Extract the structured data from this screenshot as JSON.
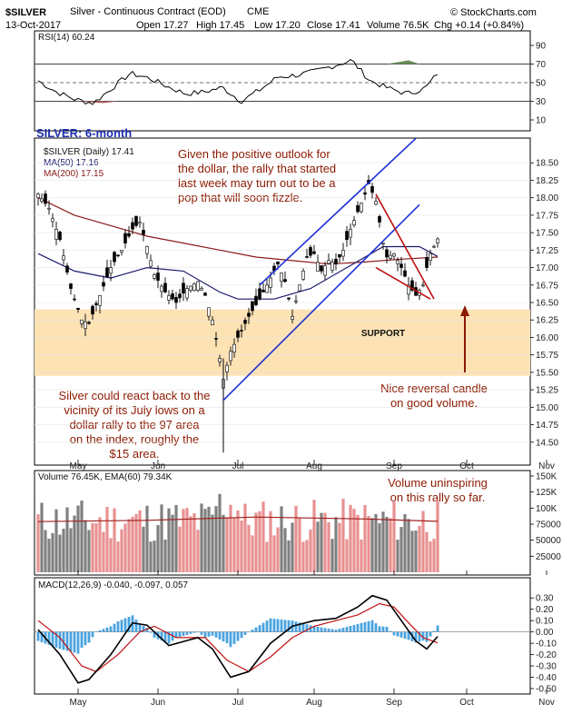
{
  "header": {
    "symbol": "$SILVER",
    "description": "Silver - Continuous Contract (EOD)",
    "exchange": "CME",
    "date": "13-Oct-2017",
    "open": "Open 17.27",
    "high": "High 17.45",
    "low": "Low 17.20",
    "close": "Close 17.41",
    "volume": "Volume 76.5K",
    "change": "Chg +0.14 (+0.84%)",
    "credit": "© StockCharts.com"
  },
  "colors": {
    "up_candle": "#ffffff",
    "down_candle": "#000000",
    "ma50": "#1a1a6e",
    "ma200": "#8b1a1a",
    "support_band": "#fde2b4",
    "channel": "#1c2fd6",
    "wedge": "#c01010",
    "annotation": "#8b1a00",
    "title": "#1c2fb0",
    "vol_up": "#e89090",
    "vol_down": "#808080",
    "macd_hist": "#4aa3df"
  },
  "chart_data": [
    {
      "type": "line",
      "panel": "rsi",
      "legend": "RSI(14) 60.24",
      "yticks": [
        "90",
        "70",
        "50",
        "30",
        "10"
      ],
      "ylim": [
        10,
        90
      ],
      "levels": [
        70,
        50,
        30
      ],
      "x": [
        0,
        6,
        12,
        18,
        24,
        30,
        36,
        42,
        48,
        54,
        60,
        66,
        72,
        78,
        84,
        90,
        96,
        102,
        108,
        114,
        120,
        126,
        130
      ],
      "values": [
        52,
        40,
        32,
        28,
        44,
        60,
        55,
        46,
        38,
        40,
        45,
        30,
        42,
        56,
        58,
        62,
        68,
        74,
        52,
        44,
        38,
        44,
        60
      ]
    },
    {
      "type": "candlestick",
      "panel": "price",
      "title": "SILVER: 6-month",
      "legend_symbol": "$SILVER (Daily) 17.41",
      "legend_ma50": "MA(50) 17.16",
      "legend_ma200": "MA(200) 17.15",
      "yticks": [
        "18.50",
        "18.25",
        "18.00",
        "17.75",
        "17.50",
        "17.25",
        "17.00",
        "16.75",
        "16.50",
        "16.25",
        "16.00",
        "15.75",
        "15.50",
        "15.25",
        "15.00",
        "14.75",
        "14.50"
      ],
      "ylim": [
        14.25,
        18.75
      ],
      "xticks": [
        {
          "label": "May",
          "i": 11
        },
        {
          "label": "Jun",
          "i": 33
        },
        {
          "label": "Jul",
          "i": 55
        },
        {
          "label": "Aug",
          "i": 76
        },
        {
          "label": "Sep",
          "i": 98
        },
        {
          "label": "Oct",
          "i": 118
        },
        {
          "label": "Nov",
          "i": 140
        }
      ],
      "close_path": [
        [
          0,
          18.05
        ],
        [
          3,
          17.85
        ],
        [
          6,
          17.4
        ],
        [
          9,
          16.7
        ],
        [
          12,
          16.25
        ],
        [
          14,
          16.2
        ],
        [
          17,
          16.6
        ],
        [
          20,
          17.0
        ],
        [
          23,
          17.25
        ],
        [
          26,
          17.55
        ],
        [
          28,
          17.65
        ],
        [
          30,
          17.3
        ],
        [
          32,
          16.9
        ],
        [
          35,
          16.65
        ],
        [
          38,
          16.5
        ],
        [
          41,
          16.7
        ],
        [
          44,
          16.8
        ],
        [
          46,
          16.6
        ],
        [
          48,
          16.25
        ],
        [
          50,
          15.7
        ],
        [
          51,
          15.4
        ],
        [
          53,
          15.8
        ],
        [
          55,
          16.0
        ],
        [
          58,
          16.3
        ],
        [
          61,
          16.55
        ],
        [
          64,
          16.85
        ],
        [
          66,
          17.05
        ],
        [
          68,
          16.8
        ],
        [
          70,
          16.3
        ],
        [
          72,
          16.75
        ],
        [
          74,
          17.15
        ],
        [
          76,
          17.2
        ],
        [
          78,
          16.95
        ],
        [
          80,
          17.1
        ],
        [
          82,
          17.05
        ],
        [
          84,
          17.25
        ],
        [
          86,
          17.55
        ],
        [
          88,
          17.8
        ],
        [
          90,
          18.05
        ],
        [
          91,
          18.2
        ],
        [
          93,
          17.95
        ],
        [
          94,
          17.65
        ],
        [
          95,
          17.35
        ],
        [
          96,
          17.15
        ],
        [
          98,
          17.2
        ],
        [
          100,
          17.0
        ],
        [
          102,
          16.75
        ],
        [
          104,
          16.6
        ],
        [
          106,
          16.75
        ],
        [
          107,
          17.0
        ],
        [
          108,
          17.2
        ],
        [
          110,
          17.41
        ]
      ],
      "ma50_path": [
        [
          0,
          17.2
        ],
        [
          10,
          16.95
        ],
        [
          20,
          16.85
        ],
        [
          30,
          17.0
        ],
        [
          40,
          16.95
        ],
        [
          50,
          16.65
        ],
        [
          55,
          16.55
        ],
        [
          65,
          16.55
        ],
        [
          75,
          16.7
        ],
        [
          85,
          17.0
        ],
        [
          95,
          17.3
        ],
        [
          105,
          17.3
        ],
        [
          110,
          17.16
        ]
      ],
      "ma200_path": [
        [
          0,
          18.0
        ],
        [
          10,
          17.75
        ],
        [
          20,
          17.6
        ],
        [
          30,
          17.45
        ],
        [
          40,
          17.35
        ],
        [
          50,
          17.25
        ],
        [
          60,
          17.15
        ],
        [
          70,
          17.1
        ],
        [
          80,
          17.05
        ],
        [
          90,
          17.08
        ],
        [
          100,
          17.12
        ],
        [
          110,
          17.15
        ]
      ],
      "support_band": [
        15.45,
        16.4
      ],
      "support_label": "SUPPORT",
      "channel_lower": [
        [
          51,
          15.1
        ],
        [
          105,
          17.9
        ]
      ],
      "channel_upper": [
        [
          61,
          16.75
        ],
        [
          104,
          18.85
        ]
      ],
      "wedge_upper": [
        [
          93,
          18.05
        ],
        [
          109,
          16.55
        ]
      ],
      "wedge_lower": [
        [
          93,
          17.0
        ],
        [
          108,
          16.55
        ]
      ],
      "annotations": {
        "dollar": [
          "Given the positive outlook for",
          "the dollar, the rally that started",
          "last week may turn out to be a",
          "pop that will soon fizzle."
        ],
        "july": [
          "Silver could react back to the",
          "vicinity of its July lows on a",
          "dollar rally to the 97 area",
          "on the index, roughly the",
          "$15 area."
        ],
        "reversal": [
          "Nice reversal candle",
          "on good volume."
        ]
      }
    },
    {
      "type": "bar",
      "panel": "volume",
      "legend": "Volume 76.45K, EMA(60) 79.34K",
      "yticks": [
        "150K",
        "125K",
        "100K",
        "75000",
        "50000",
        "25000"
      ],
      "ylim": [
        0,
        150000
      ],
      "ema_path": [
        [
          0,
          79000
        ],
        [
          30,
          81000
        ],
        [
          60,
          86000
        ],
        [
          90,
          83000
        ],
        [
          110,
          79340
        ]
      ],
      "annotation": [
        "Volume uninspiring",
        "on this rally so far."
      ]
    },
    {
      "type": "line",
      "panel": "macd",
      "legend": "MACD(12,26,9) -0.040, -0.097, 0.057",
      "yticks": [
        "0.30",
        "0.20",
        "0.10",
        "0.00",
        "-0.10",
        "-0.20",
        "-0.30",
        "-0.40",
        "-0.50"
      ],
      "ylim": [
        -0.5,
        0.35
      ],
      "series": [
        {
          "values_path": [
            [
              0,
              0.02
            ],
            [
              6,
              -0.2
            ],
            [
              11,
              -0.45
            ],
            [
              14,
              -0.42
            ],
            [
              20,
              -0.2
            ],
            [
              26,
              0.08
            ],
            [
              30,
              0.06
            ],
            [
              36,
              -0.12
            ],
            [
              44,
              -0.05
            ],
            [
              48,
              -0.15
            ],
            [
              53,
              -0.4
            ],
            [
              58,
              -0.35
            ],
            [
              64,
              -0.1
            ],
            [
              70,
              0.05
            ],
            [
              76,
              0.1
            ],
            [
              82,
              0.12
            ],
            [
              88,
              0.22
            ],
            [
              92,
              0.32
            ],
            [
              96,
              0.28
            ],
            [
              100,
              0.1
            ],
            [
              104,
              -0.08
            ],
            [
              107,
              -0.15
            ],
            [
              110,
              -0.04
            ]
          ]
        },
        {
          "values_path": [
            [
              0,
              0.1
            ],
            [
              6,
              -0.05
            ],
            [
              12,
              -0.3
            ],
            [
              16,
              -0.35
            ],
            [
              22,
              -0.2
            ],
            [
              28,
              0.0
            ],
            [
              32,
              0.05
            ],
            [
              38,
              -0.05
            ],
            [
              46,
              -0.05
            ],
            [
              52,
              -0.25
            ],
            [
              58,
              -0.35
            ],
            [
              64,
              -0.22
            ],
            [
              70,
              -0.05
            ],
            [
              76,
              0.05
            ],
            [
              82,
              0.1
            ],
            [
              88,
              0.15
            ],
            [
              94,
              0.25
            ],
            [
              98,
              0.22
            ],
            [
              102,
              0.08
            ],
            [
              106,
              -0.05
            ],
            [
              110,
              -0.097
            ]
          ]
        }
      ]
    }
  ]
}
